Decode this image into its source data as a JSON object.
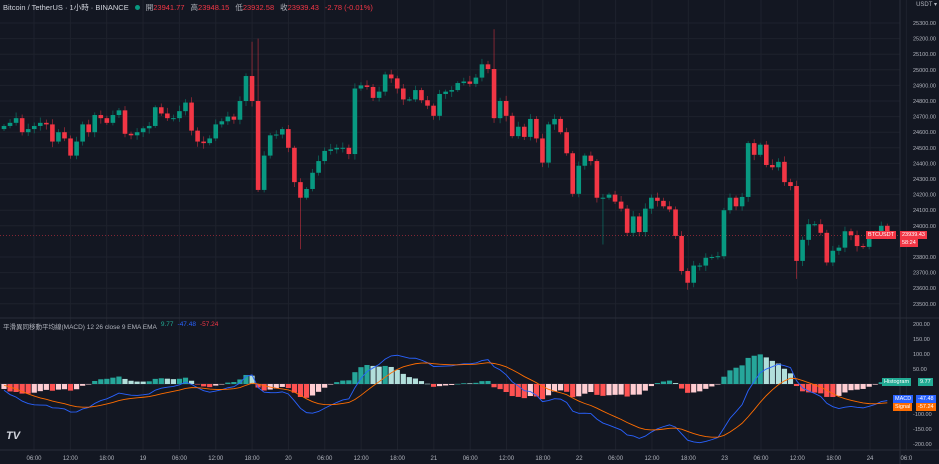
{
  "header": {
    "symbol": "Bitcoin / TetherUS · 1小時 · BINANCE",
    "open_label": "開",
    "open": "23941.77",
    "high_label": "高",
    "high": "23948.15",
    "low_label": "低",
    "low": "23932.58",
    "close_label": "收",
    "close": "23939.43",
    "change": "-2.78 (-0.01%)",
    "currency": "USDT ▾"
  },
  "indicator": {
    "name": "平滑異同移動平均線(MACD) 12 26 close 9 EMA EMA",
    "histogram": "9.77",
    "macd": "-47.48",
    "signal": "-57.24"
  },
  "price_tag": {
    "symbol": "BTCUSDT",
    "price": "23939.43",
    "countdown": "58:24"
  },
  "macd_tags": {
    "histogram_label": "Histogram",
    "histogram": "9.77",
    "macd_label": "MACD",
    "macd": "-47.48",
    "signal_label": "Signal",
    "signal": "-57.24"
  },
  "colors": {
    "up": "#089981",
    "down": "#f23645",
    "macd": "#2962ff",
    "signal": "#ff6d00",
    "hist_up_strong": "#26a69a",
    "hist_up_weak": "#b2dfdb",
    "hist_down_strong": "#ff5252",
    "hist_down_weak": "#ffcdd2"
  },
  "chart_data": [
    {
      "type": "candlestick",
      "title": "Bitcoin / TetherUS · 1h",
      "ylim": [
        23450,
        25400
      ],
      "yticks": [
        25300,
        25200,
        25100,
        25000,
        24900,
        24800,
        24700,
        24600,
        24500,
        24400,
        24300,
        24200,
        24100,
        24000,
        23800,
        23700,
        23600,
        23500
      ],
      "xticks": [
        "06:00",
        "12:00",
        "18:00",
        "19",
        "06:00",
        "12:00",
        "18:00",
        "20",
        "06:00",
        "12:00",
        "18:00",
        "21",
        "06:00",
        "12:00",
        "18:00",
        "22",
        "06:00",
        "12:00",
        "18:00",
        "23",
        "06:00",
        "12:00",
        "18:00",
        "24",
        "06:0"
      ],
      "first_open": 24620,
      "close": [
        24640,
        24660,
        24690,
        24600,
        24620,
        24640,
        24660,
        24650,
        24540,
        24600,
        24560,
        24450,
        24540,
        24650,
        24600,
        24710,
        24690,
        24660,
        24710,
        24740,
        24590,
        24580,
        24600,
        24625,
        24640,
        24760,
        24720,
        24690,
        24690,
        24735,
        24790,
        24610,
        24540,
        24530,
        24560,
        24650,
        24670,
        24700,
        24680,
        24800,
        24960,
        24800,
        24230,
        24450,
        24580,
        24585,
        24620,
        24500,
        24280,
        24180,
        24236,
        24340,
        24415,
        24480,
        24490,
        24500,
        24500,
        24460,
        24880,
        24900,
        24890,
        24820,
        24860,
        24970,
        24945,
        24880,
        24810,
        24810,
        24870,
        24805,
        24770,
        24705,
        24845,
        24860,
        24870,
        24915,
        24925,
        24910,
        24950,
        25035,
        25005,
        24690,
        24800,
        24705,
        24575,
        24635,
        24570,
        24685,
        24560,
        24405,
        24650,
        24685,
        24600,
        24465,
        24205,
        24385,
        24450,
        24415,
        24180,
        24180,
        24200,
        24155,
        24110,
        23955,
        24060,
        23960,
        24110,
        24180,
        24160,
        24125,
        24105,
        23935,
        23710,
        23635,
        23745,
        23745,
        23795,
        23800,
        23805,
        24100,
        24180,
        24125,
        24185,
        24530,
        24455,
        24520,
        24390,
        24375,
        24410,
        24280,
        24255,
        23775,
        23910,
        24010,
        24010,
        23955,
        23765,
        23840,
        23860,
        23965,
        23940,
        23870,
        23865,
        23935,
        23955,
        24000,
        23939.43
      ],
      "notable_wicks": {
        "41": {
          "high": 25180
        },
        "42": {
          "high": 25200
        },
        "49": {
          "low": 23850
        },
        "81": {
          "high": 25260
        },
        "99": {
          "low": 23880
        },
        "113": {
          "low": 23590
        },
        "131": {
          "low": 23660
        }
      },
      "last_price": 23939.43
    },
    {
      "type": "macd",
      "params": [
        12,
        26,
        9
      ],
      "ylim": [
        -230,
        230
      ],
      "yticks": [
        200,
        150,
        100,
        50,
        -100,
        -150,
        -200
      ],
      "last": {
        "histogram": 9.77,
        "macd": -47.48,
        "signal": -57.24
      }
    }
  ]
}
